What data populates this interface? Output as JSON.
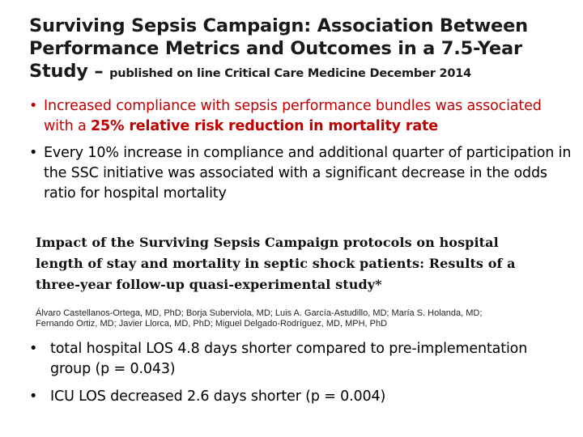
{
  "slide": {
    "title_main": "Surviving Sepsis Campaign: Association Between Performance Metrics and Outcomes in a 7.5-Year Study – ",
    "title_sub": "published on line Critical Care Medicine December 2014",
    "bullets_top": [
      {
        "text_before": "Increased compliance with sepsis performance bundles was associated with a ",
        "text_bold": "25% relative risk reduction in mortality rate",
        "color": "#c00000"
      },
      {
        "text": "Every 10% increase in compliance and additional quarter of participation in the SSC initiative was associated with a significant decrease in the odds ratio for hospital mortality"
      }
    ],
    "paper": {
      "title": "Impact of the Surviving Sepsis Campaign protocols on hospital length of stay and mortality in septic shock patients: Results of a three-year follow-up quasi-experimental study*",
      "authors": "Álvaro Castellanos-Ortega, MD, PhD; Borja Suberviola, MD; Luis A. García-Astudillo, MD; María S. Holanda, MD; Fernando Ortiz, MD; Javier Llorca, MD, PhD; Miguel Delgado-Rodríguez, MD, MPH, PhD"
    },
    "bullets_bottom": [
      "total hospital LOS 4.8 days shorter compared to pre-implementation group (p = 0.043)",
      "ICU LOS decreased 2.6 days shorter (p = 0.004)"
    ],
    "bullet_glyph": "•"
  }
}
